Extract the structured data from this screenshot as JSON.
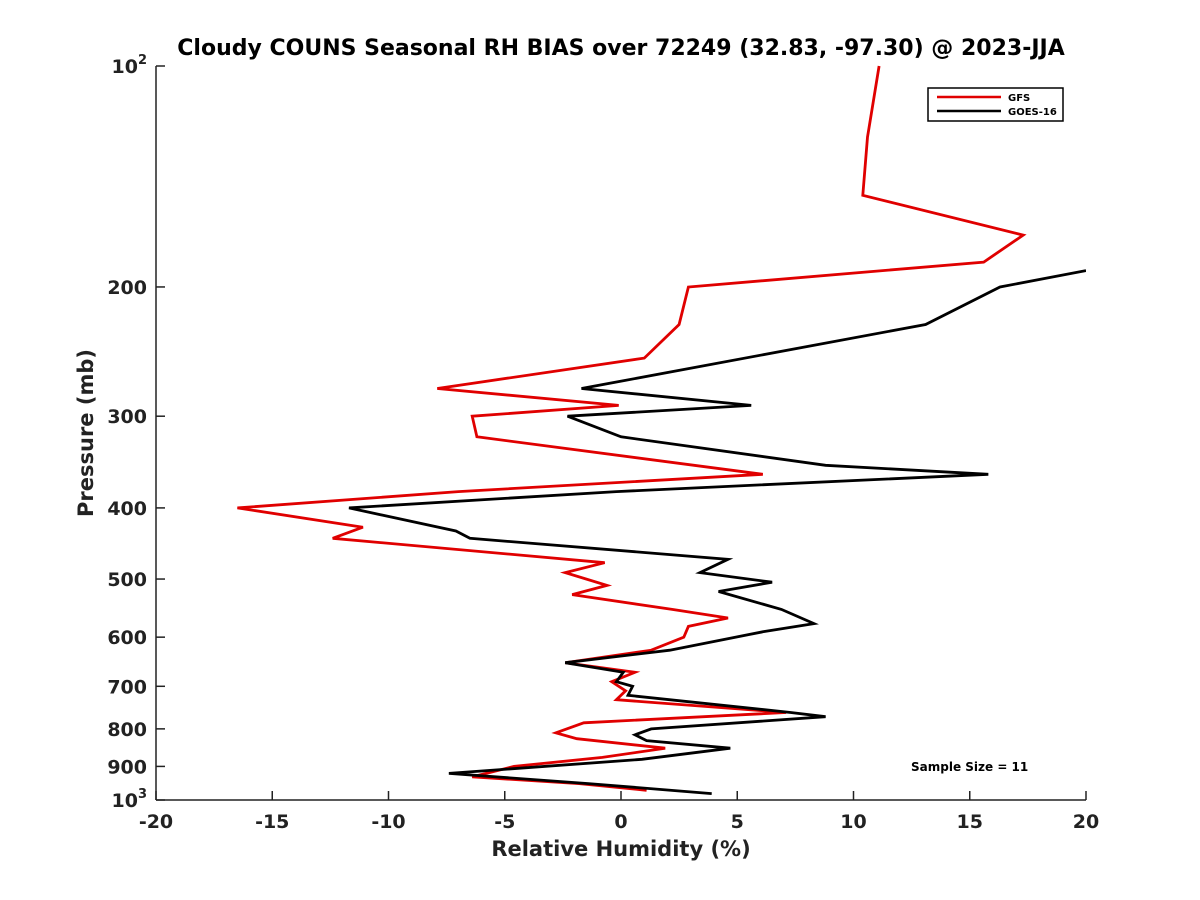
{
  "chart_data": {
    "type": "line",
    "title": "Cloudy COUNS Seasonal RH BIAS over 72249 (32.83, -97.30) @ 2023-JJA",
    "xlabel": "Relative Humidity (%)",
    "ylabel": "Pressure (mb)",
    "xlim": [
      -20,
      20
    ],
    "ylim": [
      100,
      1000
    ],
    "yscale": "log",
    "y_reversed": true,
    "xticks": [
      -20,
      -15,
      -10,
      -5,
      0,
      5,
      10,
      15,
      20
    ],
    "yticks": [
      {
        "value": 100,
        "base": "10",
        "exp": "2"
      },
      {
        "value": 200,
        "label": "200"
      },
      {
        "value": 300,
        "label": "300"
      },
      {
        "value": 400,
        "label": "400"
      },
      {
        "value": 500,
        "label": "500"
      },
      {
        "value": 600,
        "label": "600"
      },
      {
        "value": 700,
        "label": "700"
      },
      {
        "value": 800,
        "label": "800"
      },
      {
        "value": 900,
        "label": "900"
      },
      {
        "value": 1000,
        "base": "10",
        "exp": "3"
      }
    ],
    "legend_position": "top-right",
    "annotation": "Sample Size = 11",
    "series": [
      {
        "name": "GFS",
        "color": "#e00000",
        "points": [
          [
            11.1,
            100
          ],
          [
            10.6,
            125
          ],
          [
            10.4,
            150
          ],
          [
            17.3,
            170
          ],
          [
            15.6,
            185
          ],
          [
            2.9,
            200
          ],
          [
            2.5,
            225
          ],
          [
            1.0,
            250
          ],
          [
            -7.9,
            275
          ],
          [
            -0.1,
            290
          ],
          [
            -6.4,
            300
          ],
          [
            -6.2,
            320
          ],
          [
            6.1,
            360
          ],
          [
            -7.0,
            380
          ],
          [
            -16.5,
            400
          ],
          [
            -11.1,
            425
          ],
          [
            -12.4,
            440
          ],
          [
            -0.7,
            475
          ],
          [
            -2.4,
            490
          ],
          [
            -0.6,
            510
          ],
          [
            -2.1,
            525
          ],
          [
            2.2,
            550
          ],
          [
            4.6,
            565
          ],
          [
            2.9,
            580
          ],
          [
            2.7,
            600
          ],
          [
            1.3,
            625
          ],
          [
            -2.4,
            650
          ],
          [
            0.6,
            670
          ],
          [
            -0.4,
            690
          ],
          [
            0.2,
            710
          ],
          [
            -0.2,
            730
          ],
          [
            7.1,
            760
          ],
          [
            -1.6,
            785
          ],
          [
            -2.8,
            810
          ],
          [
            -1.9,
            825
          ],
          [
            1.9,
            850
          ],
          [
            -0.8,
            875
          ],
          [
            -4.6,
            900
          ],
          [
            -6.4,
            930
          ],
          [
            -1.8,
            950
          ],
          [
            1.1,
            970
          ]
        ]
      },
      {
        "name": "GOES-16",
        "color": "#000000",
        "points": [
          [
            20.0,
            190
          ],
          [
            16.3,
            200
          ],
          [
            13.1,
            225
          ],
          [
            -1.7,
            275
          ],
          [
            5.6,
            290
          ],
          [
            -2.3,
            300
          ],
          [
            0.0,
            320
          ],
          [
            8.8,
            350
          ],
          [
            15.8,
            360
          ],
          [
            -0.2,
            380
          ],
          [
            -11.7,
            400
          ],
          [
            -7.1,
            430
          ],
          [
            -6.5,
            440
          ],
          [
            4.6,
            470
          ],
          [
            3.4,
            490
          ],
          [
            6.5,
            505
          ],
          [
            4.2,
            520
          ],
          [
            6.9,
            550
          ],
          [
            8.3,
            575
          ],
          [
            6.1,
            590
          ],
          [
            2.1,
            625
          ],
          [
            -2.4,
            650
          ],
          [
            0.1,
            670
          ],
          [
            -0.2,
            690
          ],
          [
            0.5,
            700
          ],
          [
            0.3,
            720
          ],
          [
            7.3,
            760
          ],
          [
            8.8,
            770
          ],
          [
            1.3,
            800
          ],
          [
            0.6,
            815
          ],
          [
            1.1,
            830
          ],
          [
            4.7,
            850
          ],
          [
            0.9,
            880
          ],
          [
            -7.4,
            920
          ],
          [
            -1.4,
            950
          ],
          [
            3.9,
            980
          ]
        ]
      }
    ]
  }
}
